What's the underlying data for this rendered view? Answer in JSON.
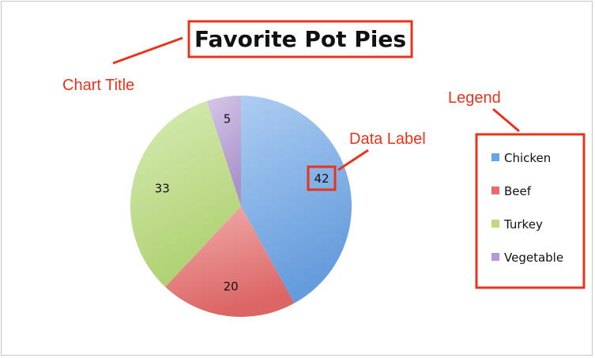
{
  "chart_data": {
    "type": "pie",
    "title": "Favorite Pot Pies",
    "categories": [
      "Chicken",
      "Beef",
      "Turkey",
      "Vegetable"
    ],
    "values": [
      42,
      20,
      33,
      5
    ],
    "colors": [
      "#6aa4e8",
      "#e86a6a",
      "#b8dc78",
      "#b39ad6"
    ],
    "legend_position": "right",
    "annotations": {
      "chart_title": "Chart Title",
      "data_label": "Data Label",
      "legend": "Legend"
    },
    "annotation_color": "#e8341c"
  }
}
